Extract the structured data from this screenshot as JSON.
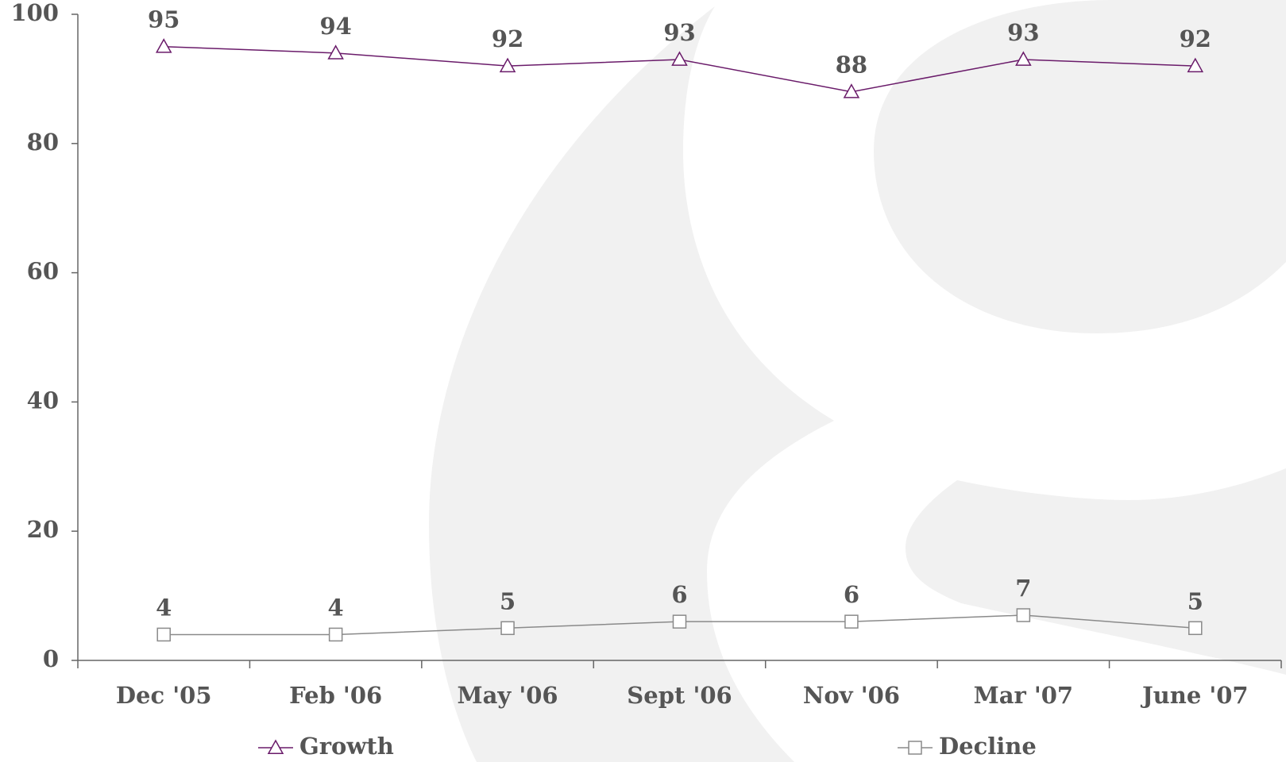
{
  "chart_data": {
    "type": "line",
    "categories": [
      "Dec '05",
      "Feb '06",
      "May '06",
      "Sept '06",
      "Nov '06",
      "Mar '07",
      "June '07"
    ],
    "series": [
      {
        "name": "Growth",
        "color": "#6a1b6a",
        "marker": "triangle",
        "values": [
          95,
          94,
          92,
          93,
          88,
          93,
          92
        ]
      },
      {
        "name": "Decline",
        "color": "#8a8a8a",
        "marker": "square",
        "values": [
          4,
          4,
          5,
          6,
          6,
          7,
          5
        ]
      }
    ],
    "ylim": [
      0,
      100
    ],
    "yticks": [
      0,
      20,
      40,
      60,
      80,
      100
    ],
    "grid": false,
    "legend": "bottom"
  }
}
